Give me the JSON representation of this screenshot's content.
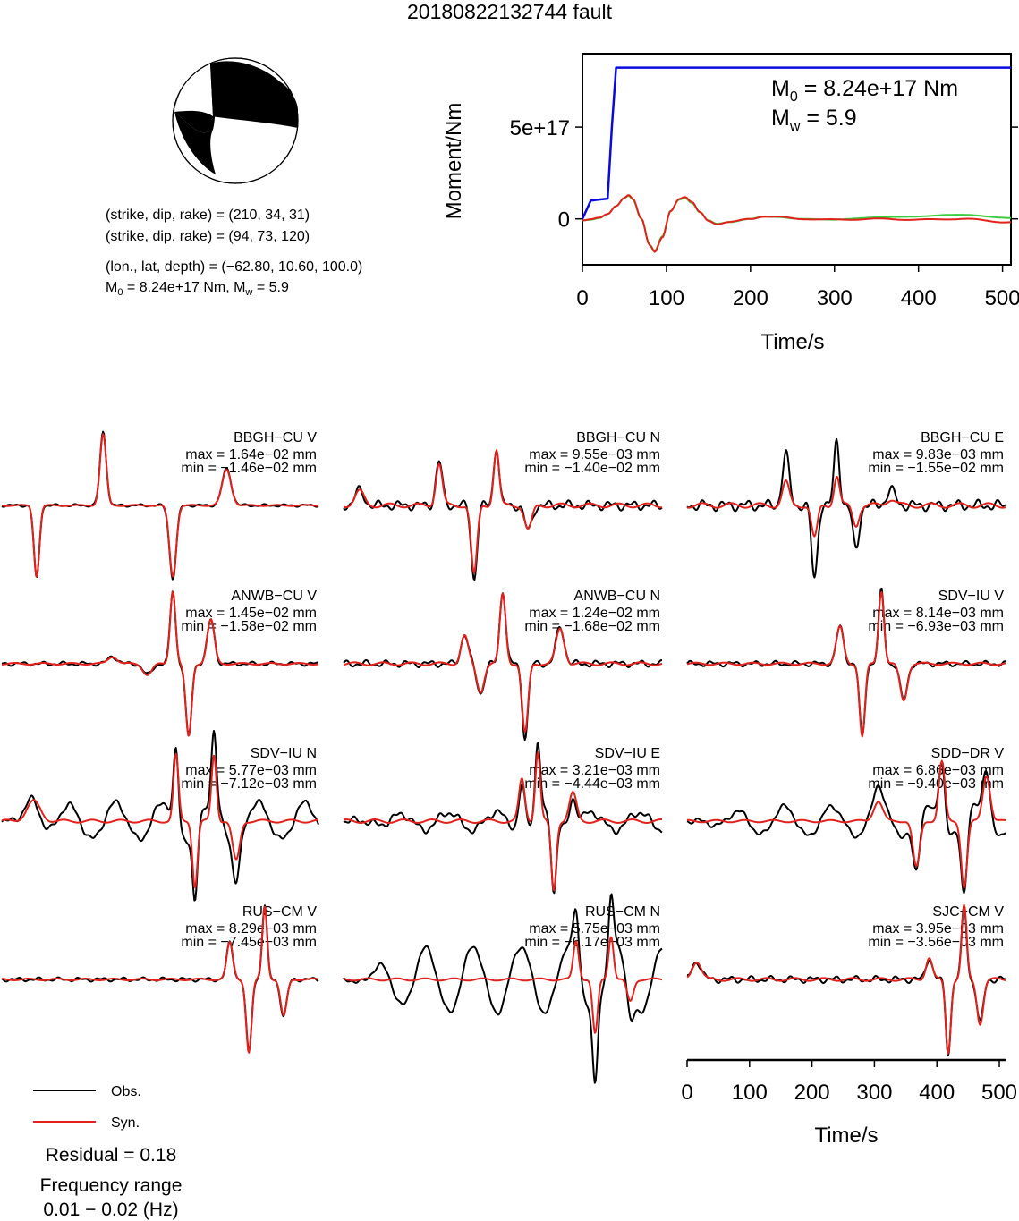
{
  "title": "20180822132744 fault",
  "mechanism": {
    "plane1": "(strike, dip, rake) = (210, 34, 31)",
    "plane2": "(strike, dip, rake) = (94, 73, 120)",
    "location": "(lon., lat, depth) = (−62.80, 10.60, 100.0)",
    "m0_text": "= 8.24e+17 Nm, M",
    "mw_text": "= 5.9"
  },
  "colors": {
    "obs": "#000000",
    "syn": "#e3211c",
    "moment": "#0a0adf",
    "stf_green": "#3dcc3d"
  },
  "chart_data": [
    {
      "type": "line",
      "name": "moment-rate",
      "xlabel": "Time/s",
      "ylabel": "Moment/Nm",
      "xlim": [
        0,
        510
      ],
      "ylim": [
        -2.5e+17,
        9e+17
      ],
      "xticks": [
        "0",
        "100",
        "200",
        "300",
        "400",
        "500"
      ],
      "yticks": [
        "0",
        "5e+17"
      ],
      "annotations": {
        "m0": "= 8.24e+17 Nm",
        "mw": "= 5.9"
      },
      "cumulative_moment": {
        "t": [
          0,
          10,
          20,
          30,
          35,
          40,
          510
        ],
        "m": [
          0,
          1e+17,
          1.05e+17,
          1.1e+17,
          5e+17,
          8.24e+17,
          8.24e+17
        ]
      },
      "moment_rate": {
        "t": [
          0,
          10,
          20,
          30,
          40,
          50,
          55,
          60,
          70,
          80,
          86,
          95,
          105,
          115,
          122,
          130,
          140,
          150,
          160,
          175,
          200,
          215,
          230,
          260,
          300,
          350,
          400,
          450,
          510
        ],
        "v": [
          -0.1,
          -0.05,
          0.05,
          0.3,
          0.8,
          1.3,
          1.45,
          1.2,
          0.0,
          -1.6,
          -2.0,
          -1.1,
          0.5,
          1.2,
          1.3,
          1.0,
          0.4,
          -0.1,
          -0.3,
          -0.2,
          0.0,
          0.15,
          0.12,
          0.0,
          -0.05,
          0.0,
          -0.05,
          0.0,
          -0.2
        ]
      }
    },
    {
      "type": "line",
      "name": "waveforms",
      "xlabel": "Time/s",
      "xlim": [
        0,
        510
      ],
      "xticks": [
        "0",
        "100",
        "200",
        "300",
        "400",
        "500"
      ],
      "legend": {
        "obs": "Obs.",
        "syn": "Syn."
      },
      "residual": "Residual = 0.18",
      "freq_label": "Frequency range",
      "freq_range": "0.01 − 0.02 (Hz)",
      "traces": [
        {
          "station": "BBGH−CU V",
          "max": "max = 1.64e−02 mm",
          "min": "min = −1.46e−02 mm",
          "comps": [
            [
              0.11,
              -1,
              0.012
            ],
            [
              0.32,
              1,
              0.014
            ],
            [
              0.54,
              -1,
              0.015
            ],
            [
              0.71,
              0.5,
              0.02
            ]
          ],
          "noise": 0.02,
          "amp": [
            1.0,
            0.97
          ]
        },
        {
          "station": "BBGH−CU N",
          "max": "max = 9.55e−03 mm",
          "min": "min = −1.40e−02 mm",
          "comps": [
            [
              0.3,
              0.6,
              0.014
            ],
            [
              0.41,
              -1,
              0.013
            ],
            [
              0.48,
              0.8,
              0.012
            ],
            [
              0.58,
              -0.35,
              0.016
            ],
            [
              0.05,
              0.2,
              0.02
            ]
          ],
          "noise": 0.07,
          "amp": [
            1.0,
            0.95
          ]
        },
        {
          "station": "BBGH−CU E",
          "max": "max = 9.83e−03 mm",
          "min": "min = −1.55e−02 mm",
          "comps": [
            [
              0.31,
              0.7,
              0.015
            ],
            [
              0.4,
              -1,
              0.013
            ],
            [
              0.47,
              0.9,
              0.012
            ],
            [
              0.53,
              -0.6,
              0.014
            ],
            [
              0.64,
              0.2,
              0.02
            ]
          ],
          "noise": 0.08,
          "amp": [
            1.0,
            0.45
          ]
        },
        {
          "station": "ANWB−CU V",
          "max": "max = 1.45e−02 mm",
          "min": "min = −1.58e−02 mm",
          "comps": [
            [
              0.35,
              0.1,
              0.02
            ],
            [
              0.46,
              -0.15,
              0.02
            ],
            [
              0.54,
              1,
              0.012
            ],
            [
              0.59,
              -1,
              0.013
            ],
            [
              0.66,
              0.6,
              0.016
            ]
          ],
          "noise": 0.03,
          "amp": [
            1.0,
            1.0
          ]
        },
        {
          "station": "ANWB−CU N",
          "max": "max = 1.24e−02 mm",
          "min": "min = −1.68e−02 mm",
          "comps": [
            [
              0.38,
              0.4,
              0.016
            ],
            [
              0.43,
              -0.4,
              0.016
            ],
            [
              0.5,
              1,
              0.013
            ],
            [
              0.57,
              -1,
              0.013
            ],
            [
              0.68,
              0.5,
              0.018
            ]
          ],
          "noise": 0.05,
          "amp": [
            1.0,
            0.95
          ]
        },
        {
          "station": "SDV−IU V",
          "max": "max = 8.14e−03 mm",
          "min": "min = −6.93e−03 mm",
          "comps": [
            [
              0.48,
              0.5,
              0.016
            ],
            [
              0.55,
              -1,
              0.012
            ],
            [
              0.61,
              1,
              0.012
            ],
            [
              0.68,
              -0.5,
              0.016
            ]
          ],
          "noise": 0.04,
          "amp": [
            1.0,
            1.0
          ]
        },
        {
          "station": "SDV−IU N",
          "max": "max = 5.77e−03 mm",
          "min": "min = −7.12e−03 mm",
          "comps": [
            [
              0.55,
              1,
              0.011
            ],
            [
              0.61,
              -1,
              0.011
            ],
            [
              0.67,
              1,
              0.011
            ],
            [
              0.74,
              -0.6,
              0.016
            ],
            [
              0.1,
              0.3,
              0.03
            ]
          ],
          "noise": 0.05,
          "amp": [
            1.0,
            0.9
          ],
          "osc": 0.25
        },
        {
          "station": "SDV−IU E",
          "max": "max = 3.21e−03 mm",
          "min": "min = −4.44e−03 mm",
          "comps": [
            [
              0.56,
              0.6,
              0.013
            ],
            [
              0.61,
              1,
              0.011
            ],
            [
              0.66,
              -1,
              0.011
            ],
            [
              0.72,
              0.4,
              0.016
            ]
          ],
          "noise": 0.06,
          "amp": [
            1.0,
            0.95
          ],
          "osc": 0.12
        },
        {
          "station": "SDD−DR V",
          "max": "max = 6.86e−03 mm",
          "min": "min = −9.40e−03 mm",
          "comps": [
            [
              0.6,
              0.3,
              0.02
            ],
            [
              0.72,
              -0.7,
              0.015
            ],
            [
              0.8,
              0.9,
              0.013
            ],
            [
              0.87,
              -1,
              0.013
            ],
            [
              0.94,
              0.7,
              0.016
            ]
          ],
          "noise": 0.04,
          "amp": [
            1.0,
            0.9
          ],
          "osc": 0.2
        },
        {
          "station": "RUS−CM V",
          "max": "max = 8.29e−03 mm",
          "min": "min = −7.45e−03 mm",
          "comps": [
            [
              0.72,
              0.5,
              0.014
            ],
            [
              0.78,
              -1,
              0.012
            ],
            [
              0.83,
              1,
              0.011
            ],
            [
              0.89,
              -0.5,
              0.014
            ]
          ],
          "noise": 0.03,
          "amp": [
            1.0,
            1.0
          ]
        },
        {
          "station": "RUS−CM N",
          "max": "max = 5.75e−03 mm",
          "min": "min = −6.17e−03 mm",
          "comps": [
            [
              0.73,
              0.7,
              0.012
            ],
            [
              0.79,
              -1,
              0.011
            ],
            [
              0.84,
              0.8,
              0.011
            ],
            [
              0.9,
              -0.4,
              0.014
            ]
          ],
          "noise": 0.04,
          "amp": [
            1.0,
            0.75
          ],
          "osc": 0.45
        },
        {
          "station": "SJC−CM V",
          "max": "max = 3.95e−03 mm",
          "min": "min = −3.56e−03 mm",
          "comps": [
            [
              0.76,
              0.3,
              0.014
            ],
            [
              0.82,
              -1,
              0.011
            ],
            [
              0.87,
              1,
              0.011
            ],
            [
              0.92,
              -0.6,
              0.014
            ],
            [
              0.03,
              0.25,
              0.02
            ]
          ],
          "noise": 0.05,
          "amp": [
            1.0,
            1.0
          ]
        }
      ]
    }
  ]
}
